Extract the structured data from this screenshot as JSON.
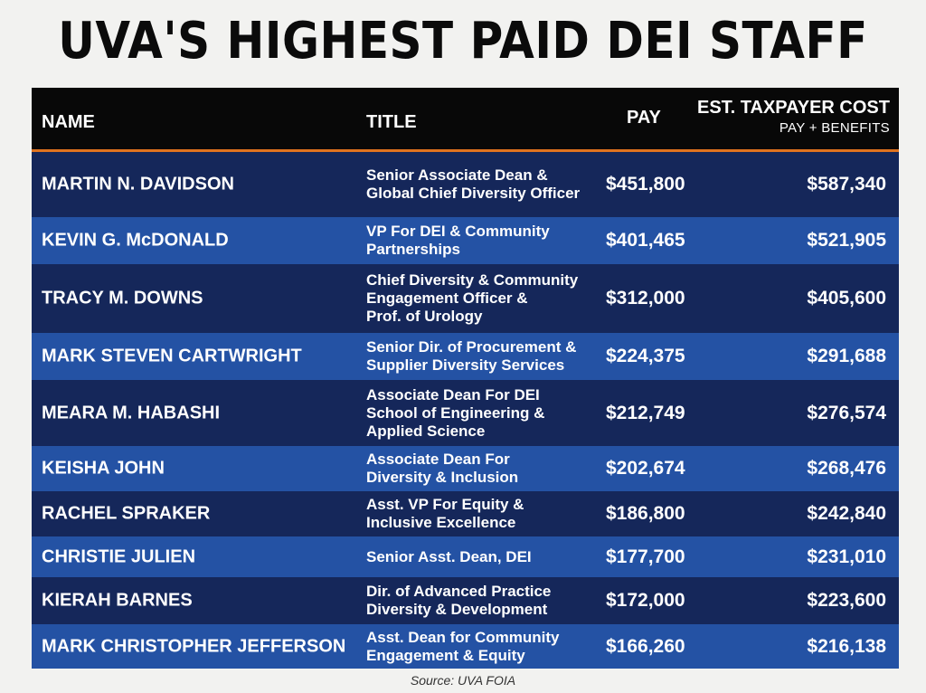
{
  "headline": "UVA'S HIGHEST PAID DEI STAFF",
  "columns": {
    "name": "NAME",
    "title": "TITLE",
    "pay": "PAY",
    "cost": "EST. TAXPAYER COST",
    "cost_sub": "PAY + BENEFITS"
  },
  "rows": [
    {
      "name": "MARTIN N. DAVIDSON",
      "title": [
        "Senior Associate Dean &",
        "Global Chief Diversity Officer"
      ],
      "pay": "$451,800",
      "cost": "$587,340"
    },
    {
      "name": "KEVIN G. McDONALD",
      "title": [
        "VP For DEI & Community",
        "Partnerships"
      ],
      "pay": "$401,465",
      "cost": "$521,905"
    },
    {
      "name": "TRACY M. DOWNS",
      "title": [
        "Chief Diversity & Community",
        "Engagement Officer &",
        "Prof. of Urology"
      ],
      "pay": "$312,000",
      "cost": "$405,600"
    },
    {
      "name": "MARK STEVEN CARTWRIGHT",
      "title": [
        "Senior Dir. of Procurement &",
        "Supplier Diversity Services"
      ],
      "pay": "$224,375",
      "cost": "$291,688"
    },
    {
      "name": "MEARA M. HABASHI",
      "title": [
        "Associate Dean For DEI",
        "School of Engineering &",
        "Applied Science"
      ],
      "pay": "$212,749",
      "cost": "$276,574"
    },
    {
      "name": "KEISHA JOHN",
      "title": [
        "Associate Dean For",
        "Diversity & Inclusion"
      ],
      "pay": "$202,674",
      "cost": "$268,476"
    },
    {
      "name": "RACHEL SPRAKER",
      "title": [
        "Asst. VP For Equity &",
        "Inclusive Excellence"
      ],
      "pay": "$186,800",
      "cost": "$242,840"
    },
    {
      "name": "CHRISTIE JULIEN",
      "title": [
        "Senior Asst. Dean, DEI"
      ],
      "pay": "$177,700",
      "cost": "$231,010"
    },
    {
      "name": "KIERAH BARNES",
      "title": [
        "Dir. of Advanced Practice",
        "Diversity & Development"
      ],
      "pay": "$172,000",
      "cost": "$223,600"
    },
    {
      "name": "MARK CHRISTOPHER JEFFERSON",
      "title": [
        "Asst. Dean for Community",
        "Engagement & Equity"
      ],
      "pay": "$166,260",
      "cost": "$216,138"
    }
  ],
  "source": "Source: UVA FOIA",
  "colors": {
    "header_bg": "#080808",
    "accent": "#e0731f",
    "row_dark": "#15275a",
    "row_light": "#2452a4"
  }
}
